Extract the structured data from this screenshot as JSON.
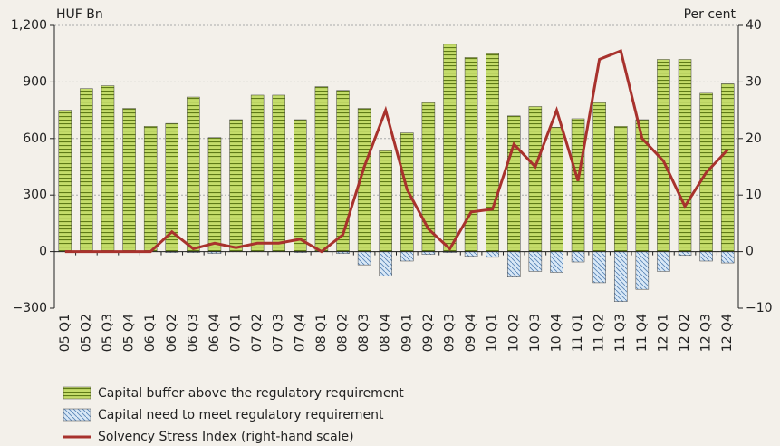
{
  "chart_data": {
    "type": "bar",
    "y_label": "HUF Bn",
    "y2_label": "Per cent",
    "categories": [
      "05 Q1",
      "05 Q2",
      "05 Q3",
      "05 Q4",
      "06 Q1",
      "06 Q2",
      "06 Q3",
      "06 Q4",
      "07 Q1",
      "07 Q2",
      "07 Q3",
      "07 Q4",
      "08 Q1",
      "08 Q2",
      "08 Q3",
      "08 Q4",
      "09 Q1",
      "09 Q2",
      "09 Q3",
      "09 Q4",
      "10 Q1",
      "10 Q2",
      "10 Q3",
      "10 Q4",
      "11 Q1",
      "11 Q2",
      "11 Q3",
      "11 Q4",
      "12 Q1",
      "12 Q2",
      "12 Q3",
      "12 Q4"
    ],
    "series": [
      {
        "name": "Capital buffer above the regulatory requirement",
        "type": "bar",
        "color": "#9bbb3b",
        "values": [
          750,
          865,
          880,
          760,
          665,
          680,
          820,
          605,
          700,
          830,
          830,
          700,
          875,
          855,
          760,
          535,
          630,
          790,
          1100,
          1030,
          1050,
          720,
          770,
          660,
          705,
          790,
          665,
          700,
          1020,
          1020,
          840,
          890
        ]
      },
      {
        "name": "Capital need to meet regulatory requirement",
        "type": "bar",
        "color": "#a9c8e8",
        "values": [
          0,
          0,
          0,
          0,
          0,
          -5,
          -5,
          -10,
          0,
          0,
          0,
          -5,
          0,
          -10,
          -70,
          -130,
          -50,
          -15,
          -5,
          -25,
          -30,
          -135,
          -105,
          -110,
          -55,
          -165,
          -265,
          -200,
          -105,
          -20,
          -50,
          -60
        ]
      },
      {
        "name": "Solvency Stress Index (right-hand scale)",
        "type": "line",
        "axis": "y2",
        "color": "#a8322d",
        "values": [
          0,
          0,
          0,
          0,
          0,
          3.5,
          0.5,
          1.5,
          0.7,
          1.5,
          1.5,
          2.2,
          0,
          3,
          15,
          25,
          11,
          4,
          0.5,
          7,
          7.5,
          19,
          15,
          25,
          12.5,
          34,
          35.5,
          20,
          16,
          8,
          14,
          18
        ]
      }
    ],
    "ylim": [
      -300,
      1200
    ],
    "yticks": [
      {
        "value": -300,
        "label": "−300"
      },
      0,
      300,
      600,
      900,
      {
        "value": 1200,
        "label": "1,200"
      }
    ],
    "y2lim": [
      -10,
      40
    ],
    "y2ticks": [
      {
        "value": -10,
        "label": "−10"
      },
      0,
      10,
      20,
      30,
      40
    ],
    "grid": true
  }
}
